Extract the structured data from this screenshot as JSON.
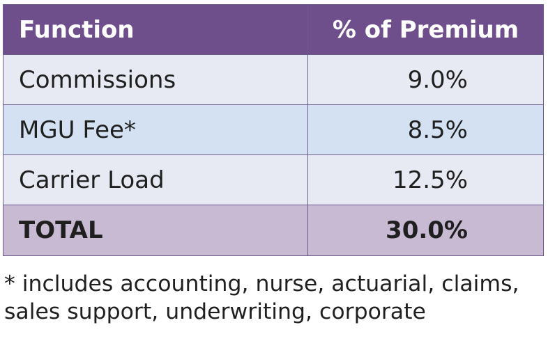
{
  "table": {
    "headers": {
      "function": "Function",
      "percent": "% of Premium"
    },
    "rows": [
      {
        "function": "Commissions",
        "percent": "9.0%"
      },
      {
        "function": "MGU Fee*",
        "percent": "8.5%"
      },
      {
        "function": "Carrier Load",
        "percent": "12.5%"
      }
    ],
    "total": {
      "function": "TOTAL",
      "percent": "30.0%"
    }
  },
  "footnote": {
    "line1": "* includes accounting, nurse, actuarial, claims,",
    "line2": "sales support, underwriting, corporate"
  },
  "colors": {
    "header_bg": "#6e4f8c",
    "row_light": "#e7eaf3",
    "row_blue": "#d3e1f2",
    "total_bg": "#c8bad3"
  }
}
